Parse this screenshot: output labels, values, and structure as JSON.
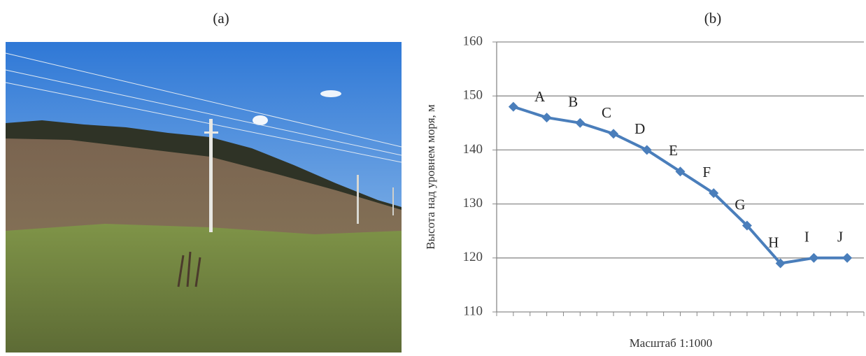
{
  "panel_labels": {
    "a": "(a)",
    "b": "(b)"
  },
  "chart_data": {
    "type": "line",
    "categories": [
      null,
      null,
      null,
      null,
      null,
      null,
      null,
      null,
      null,
      null,
      null
    ],
    "point_labels": [
      null,
      "A",
      "B",
      "C",
      "D",
      "E",
      "F",
      "G",
      "H",
      "I",
      "J"
    ],
    "series": [
      {
        "color": "#4a7ebb",
        "values": [
          148,
          146,
          145,
          143,
          140,
          136,
          132,
          126,
          119,
          120,
          120
        ]
      }
    ],
    "ylim": [
      110,
      160
    ],
    "yticks": [
      110,
      120,
      130,
      140,
      150,
      160
    ],
    "ylabel": "Высота над уровнем моря, м",
    "xlabel": "Масштаб 1:1000",
    "grid": true
  }
}
